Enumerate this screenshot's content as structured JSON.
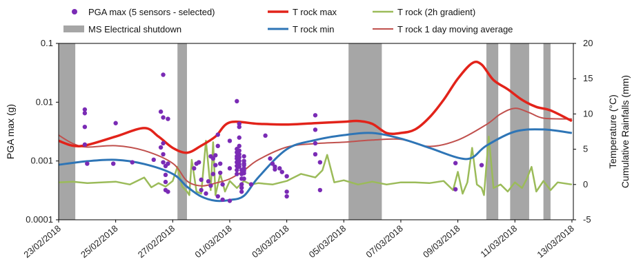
{
  "chart_data": {
    "type": "line",
    "title": "",
    "ylabel": "PGA max (g)",
    "y2label": [
      "Temperature (°C)",
      "Cumulative Rainfalls (mm)"
    ],
    "y_scale": "log",
    "ylim": [
      0.0001,
      0.1
    ],
    "y_ticks": [
      "0.0001",
      "0.001",
      "0.01",
      "0.1"
    ],
    "y2lim": [
      -5,
      20
    ],
    "y2_ticks": [
      "-5",
      "0",
      "5",
      "10",
      "15",
      "20"
    ],
    "x_ticks": [
      "23/02/2018",
      "25/02/2018",
      "27/02/2018",
      "01/03/2018",
      "03/03/2018",
      "05/03/2018",
      "07/03/2018",
      "09/03/2018",
      "11/03/2018",
      "13/03/2018"
    ],
    "xlim": [
      "23/02/2018",
      "13/03/2018"
    ],
    "grid": "none",
    "legend_position": "top",
    "legend": [
      {
        "label": "PGA max (5 sensors - selected)",
        "symbol": "dot",
        "color": "#7a2bb5"
      },
      {
        "label": "MS Electrical shutdown",
        "symbol": "box",
        "color": "#a6a6a6"
      },
      {
        "label": "T rock max",
        "symbol": "line",
        "color": "#e2231a"
      },
      {
        "label": "T rock min",
        "symbol": "line",
        "color": "#2e75b6"
      },
      {
        "label": "T rock (2h gradient)",
        "symbol": "line",
        "color": "#9bbb59"
      },
      {
        "label": "T rock 1 day moving average",
        "symbol": "line",
        "color": "#c0504d"
      }
    ],
    "shutdowns": [
      {
        "start": "23/02/2018 00:00",
        "end": "23/02/2018 14:00"
      },
      {
        "start": "27/02/2018 04:00",
        "end": "27/02/2018 12:00"
      },
      {
        "start": "05/03/2018 04:00",
        "end": "06/03/2018 08:00"
      },
      {
        "start": "10/03/2018 00:00",
        "end": "10/03/2018 10:00"
      },
      {
        "start": "10/03/2018 20:00",
        "end": "11/03/2018 12:00"
      },
      {
        "start": "12/03/2018 00:00",
        "end": "12/03/2018 06:00"
      }
    ],
    "series": [
      {
        "name": "T rock max",
        "axis": "right",
        "color": "#e2231a",
        "width": 3.5,
        "x": [
          "23/02/2018 00:00",
          "23/02/2018 12:00",
          "24/02/2018 00:00",
          "25/02/2018 00:00",
          "26/02/2018 00:00",
          "26/02/2018 12:00",
          "27/02/2018 00:00",
          "27/02/2018 12:00",
          "28/02/2018 00:00",
          "28/02/2018 12:00",
          "01/03/2018 00:00",
          "02/03/2018 00:00",
          "03/03/2018 00:00",
          "04/03/2018 00:00",
          "05/03/2018 00:00",
          "05/03/2018 12:00",
          "06/03/2018 00:00",
          "06/03/2018 12:00",
          "07/03/2018 00:00",
          "07/03/2018 12:00",
          "08/03/2018 00:00",
          "08/03/2018 12:00",
          "09/03/2018 00:00",
          "09/03/2018 12:00",
          "09/03/2018 20:00",
          "10/03/2018 06:00",
          "10/03/2018 18:00",
          "11/03/2018 06:00",
          "11/03/2018 18:00",
          "12/03/2018 06:00",
          "13/03/2018 00:00"
        ],
        "y": [
          6.2,
          5.5,
          5.6,
          6.8,
          8.0,
          6.8,
          5.2,
          4.5,
          5.5,
          6.8,
          8.8,
          8.6,
          8.5,
          8.7,
          8.9,
          9.0,
          8.6,
          7.3,
          7.3,
          7.8,
          9.5,
          12.0,
          15.0,
          17.2,
          17.0,
          14.8,
          13.5,
          12.0,
          11.0,
          10.5,
          9.0
        ]
      },
      {
        "name": "T rock min",
        "axis": "right",
        "color": "#2e75b6",
        "width": 3,
        "x": [
          "23/02/2018 00:00",
          "24/02/2018 00:00",
          "25/02/2018 00:00",
          "26/02/2018 00:00",
          "27/02/2018 00:00",
          "27/02/2018 12:00",
          "28/02/2018 00:00",
          "28/02/2018 12:00",
          "01/03/2018 00:00",
          "01/03/2018 12:00",
          "02/03/2018 00:00",
          "03/03/2018 00:00",
          "04/03/2018 00:00",
          "05/03/2018 00:00",
          "06/03/2018 00:00",
          "07/03/2018 00:00",
          "08/03/2018 00:00",
          "09/03/2018 00:00",
          "09/03/2018 12:00",
          "10/03/2018 00:00",
          "11/03/2018 00:00",
          "12/03/2018 00:00",
          "13/03/2018 00:00"
        ],
        "y": [
          2.8,
          3.3,
          3.5,
          2.9,
          1.5,
          -0.3,
          -1.7,
          -2.3,
          -2.2,
          -1.6,
          1.0,
          5.0,
          6.3,
          7.0,
          7.3,
          6.5,
          5.2,
          3.8,
          3.8,
          5.5,
          7.5,
          7.8,
          7.3
        ]
      },
      {
        "name": "T rock 1 day moving average",
        "axis": "right",
        "color": "#c0504d",
        "width": 2,
        "x": [
          "23/02/2018 00:00",
          "23/02/2018 12:00",
          "24/02/2018 00:00",
          "25/02/2018 00:00",
          "26/02/2018 00:00",
          "27/02/2018 00:00",
          "27/02/2018 12:00",
          "28/02/2018 00:00",
          "28/02/2018 12:00",
          "01/03/2018 00:00",
          "01/03/2018 12:00",
          "02/03/2018 00:00",
          "03/03/2018 00:00",
          "04/03/2018 00:00",
          "05/03/2018 00:00",
          "06/03/2018 00:00",
          "07/03/2018 00:00",
          "08/03/2018 00:00",
          "09/03/2018 00:00",
          "10/03/2018 00:00",
          "10/03/2018 12:00",
          "11/03/2018 00:00",
          "11/03/2018 12:00",
          "12/03/2018 00:00",
          "13/03/2018 00:00"
        ],
        "y": [
          7.0,
          5.8,
          5.3,
          5.5,
          4.8,
          3.0,
          0.5,
          -0.2,
          0.2,
          0.8,
          2.0,
          3.5,
          5.3,
          5.8,
          6.0,
          6.3,
          6.4,
          5.4,
          6.3,
          8.5,
          10.0,
          10.8,
          10.2,
          9.4,
          9.3
        ]
      },
      {
        "name": "T rock (2h gradient)",
        "axis": "right",
        "color": "#9bbb59",
        "width": 2.5,
        "x": [
          "23/02/2018 00:00",
          "23/02/2018 12:00",
          "24/02/2018 00:00",
          "24/02/2018 12:00",
          "25/02/2018 00:00",
          "25/02/2018 12:00",
          "26/02/2018 00:00",
          "26/02/2018 06:00",
          "26/02/2018 12:00",
          "26/02/2018 18:00",
          "27/02/2018 00:00",
          "27/02/2018 04:00",
          "27/02/2018 08:00",
          "27/02/2018 12:00",
          "27/02/2018 14:00",
          "27/02/2018 16:00",
          "27/02/2018 20:00",
          "28/02/2018 00:00",
          "28/02/2018 04:00",
          "28/02/2018 08:00",
          "28/02/2018 10:00",
          "28/02/2018 12:00",
          "28/02/2018 16:00",
          "28/02/2018 20:00",
          "01/03/2018 00:00",
          "01/03/2018 06:00",
          "01/03/2018 12:00",
          "01/03/2018 18:00",
          "02/03/2018 00:00",
          "02/03/2018 12:00",
          "03/03/2018 00:00",
          "03/03/2018 12:00",
          "04/03/2018 00:00",
          "04/03/2018 06:00",
          "04/03/2018 10:00",
          "04/03/2018 16:00",
          "05/03/2018 00:00",
          "05/03/2018 12:00",
          "06/03/2018 00:00",
          "06/03/2018 12:00",
          "07/03/2018 00:00",
          "07/03/2018 12:00",
          "08/03/2018 00:00",
          "08/03/2018 12:00",
          "08/03/2018 20:00",
          "09/03/2018 00:00",
          "09/03/2018 04:00",
          "09/03/2018 08:00",
          "09/03/2018 12:00",
          "09/03/2018 16:00",
          "09/03/2018 20:00",
          "09/03/2018 22:00",
          "10/03/2018 02:00",
          "10/03/2018 06:00",
          "10/03/2018 12:00",
          "10/03/2018 18:00",
          "11/03/2018 00:00",
          "11/03/2018 06:00",
          "11/03/2018 10:00",
          "11/03/2018 14:00",
          "11/03/2018 18:00",
          "12/03/2018 00:00",
          "12/03/2018 06:00",
          "12/03/2018 12:00",
          "13/03/2018 00:00"
        ],
        "y": [
          0.3,
          0.4,
          0.2,
          0.3,
          0.4,
          0.0,
          1.0,
          -0.4,
          0.2,
          -0.3,
          0.5,
          2.5,
          -0.3,
          -1.0,
          -1.5,
          3.5,
          -1.0,
          -1.3,
          6.2,
          -0.8,
          6.0,
          -1.5,
          1.5,
          -1.0,
          0.5,
          -0.5,
          0.5,
          0.0,
          0.2,
          0.0,
          0.5,
          1.5,
          1.0,
          2.0,
          4.2,
          0.3,
          0.6,
          0.0,
          0.4,
          0.0,
          0.3,
          0.3,
          0.2,
          0.5,
          -0.8,
          1.8,
          -1.3,
          0.3,
          5.2,
          0.0,
          -0.5,
          -1.5,
          6.8,
          -0.5,
          0.0,
          -1.0,
          0.3,
          -0.5,
          0.8,
          2.5,
          -1.0,
          0.5,
          -0.8,
          0.3,
          0.0
        ]
      }
    ],
    "scatter": {
      "name": "PGA max (5 sensors - selected)",
      "axis": "left",
      "color": "#7a2bb5",
      "x": [
        "23/02/2018 22:00",
        "23/02/2018 22:00",
        "23/02/2018 22:00",
        "23/02/2018 22:00",
        "24/02/2018 00:00",
        "24/02/2018 22:00",
        "25/02/2018 00:00",
        "25/02/2018 14:00",
        "26/02/2018 08:00",
        "26/02/2018 14:00",
        "26/02/2018 14:00",
        "26/02/2018 16:00",
        "26/02/2018 16:00",
        "26/02/2018 16:00",
        "26/02/2018 16:00",
        "26/02/2018 16:00",
        "26/02/2018 18:00",
        "26/02/2018 18:00",
        "26/02/2018 18:00",
        "26/02/2018 18:00",
        "26/02/2018 20:00",
        "26/02/2018 20:00",
        "26/02/2018 20:00",
        "27/02/2018 18:00",
        "27/02/2018 20:00",
        "27/02/2018 22:00",
        "28/02/2018 00:00",
        "28/02/2018 00:00",
        "28/02/2018 04:00",
        "28/02/2018 06:00",
        "28/02/2018 08:00",
        "28/02/2018 08:00",
        "28/02/2018 10:00",
        "28/02/2018 10:00",
        "28/02/2018 12:00",
        "28/02/2018 12:00",
        "28/02/2018 14:00",
        "28/02/2018 14:00",
        "28/02/2018 14:00",
        "28/02/2018 16:00",
        "28/02/2018 16:00",
        "28/02/2018 18:00",
        "28/02/2018 18:00",
        "01/03/2018 00:00",
        "01/03/2018 00:00",
        "01/03/2018 00:00",
        "01/03/2018 06:00",
        "01/03/2018 06:00",
        "01/03/2018 06:00",
        "01/03/2018 06:00",
        "01/03/2018 06:00",
        "01/03/2018 06:00",
        "01/03/2018 06:00",
        "01/03/2018 06:00",
        "01/03/2018 06:00",
        "01/03/2018 08:00",
        "01/03/2018 08:00",
        "01/03/2018 08:00",
        "01/03/2018 08:00",
        "01/03/2018 08:00",
        "01/03/2018 08:00",
        "01/03/2018 08:00",
        "01/03/2018 08:00",
        "01/03/2018 08:00",
        "01/03/2018 08:00",
        "01/03/2018 10:00",
        "01/03/2018 10:00",
        "01/03/2018 10:00",
        "01/03/2018 10:00",
        "01/03/2018 10:00",
        "01/03/2018 10:00",
        "01/03/2018 12:00",
        "01/03/2018 12:00",
        "01/03/2018 12:00",
        "01/03/2018 12:00",
        "01/03/2018 12:00",
        "01/03/2018 12:00",
        "01/03/2018 12:00",
        "01/03/2018 12:00",
        "01/03/2018 18:00",
        "02/03/2018 06:00",
        "02/03/2018 10:00",
        "02/03/2018 12:00",
        "02/03/2018 14:00",
        "02/03/2018 14:00",
        "02/03/2018 18:00",
        "02/03/2018 20:00",
        "03/03/2018 00:00",
        "03/03/2018 00:00",
        "03/03/2018 00:00",
        "04/03/2018 00:00",
        "04/03/2018 00:00",
        "04/03/2018 00:00",
        "04/03/2018 00:00",
        "04/03/2018 04:00",
        "04/03/2018 04:00",
        "08/03/2018 22:00",
        "08/03/2018 22:00",
        "09/03/2018 20:00"
      ],
      "y": [
        0.0075,
        0.0065,
        0.0038,
        0.0019,
        0.0009,
        0.0009,
        0.0044,
        0.00095,
        0.00105,
        0.0017,
        0.0069,
        0.0293,
        0.0055,
        0.002,
        0.0013,
        0.00095,
        0.00082,
        0.00058,
        0.00044,
        0.00032,
        0.0052,
        0.0009,
        0.0003,
        0.00075,
        0.0009,
        0.00095,
        0.00048,
        0.00032,
        0.00028,
        0.00045,
        0.0012,
        0.00038,
        0.0011,
        0.0006,
        0.00125,
        0.00085,
        0.0028,
        0.0018,
        0.00025,
        0.0009,
        0.00063,
        0.0004,
        0.00022,
        0.0022,
        0.00075,
        0.00021,
        0.0104,
        0.0016,
        0.0014,
        0.0012,
        0.0011,
        0.00095,
        0.00082,
        0.0007,
        0.0006,
        0.0043,
        0.0038,
        0.0025,
        0.0018,
        0.0015,
        0.0013,
        0.00115,
        0.001,
        0.00088,
        0.0008,
        0.0007,
        0.0006,
        0.0005,
        0.0004,
        0.00035,
        0.0003,
        0.0012,
        0.001,
        0.0009,
        0.00085,
        0.00075,
        0.00068,
        0.00062,
        0.0005,
        0.0004,
        0.0027,
        0.0011,
        0.0009,
        0.0008,
        0.00072,
        0.00075,
        0.00065,
        0.00055,
        0.0003,
        0.00025,
        0.006,
        0.0034,
        0.002,
        0.0013,
        0.00095,
        0.00032,
        0.00033,
        0.00092,
        0.00085
      ]
    }
  }
}
